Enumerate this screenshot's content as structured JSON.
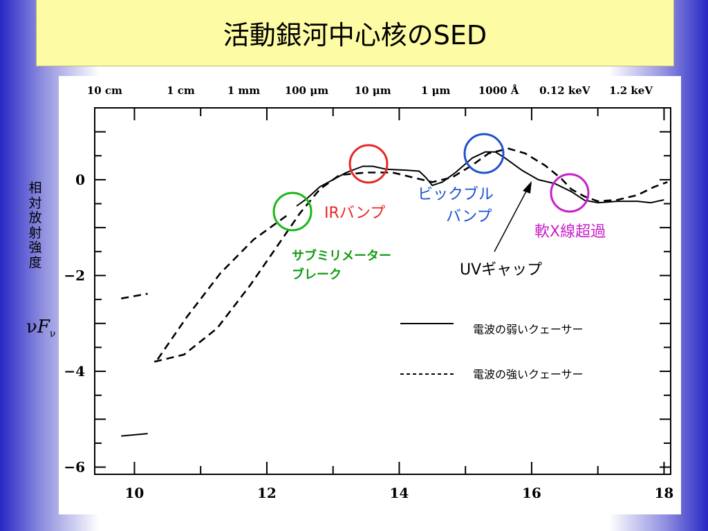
{
  "title": "活動銀河中心核のSED",
  "ylabel_vertical": "相対放射強度",
  "ylabel_symbol": {
    "base": "ν",
    "f": "F",
    "sub": "ν"
  },
  "colors": {
    "title_bg": "#fdfca4",
    "green": "#18b818",
    "red": "#e82626",
    "blue": "#1e50d2",
    "magenta": "#c81ec8",
    "green_text": "#139a13"
  },
  "chart_data": {
    "type": "line",
    "xlim": [
      9.4,
      18.1
    ],
    "ylim": [
      -6.15,
      1.5
    ],
    "x_ticks": [
      10,
      12,
      14,
      16,
      18
    ],
    "x_tick_labels": [
      "10",
      "12",
      "14",
      "16",
      "18"
    ],
    "y_ticks": [
      0,
      -2,
      -4,
      -6
    ],
    "y_tick_labels": [
      "0",
      "−2",
      "−4",
      "−6"
    ],
    "top_axis_labels": [
      {
        "x": 9.55,
        "label": "10 cm"
      },
      {
        "x": 10.7,
        "label": "1 cm"
      },
      {
        "x": 11.65,
        "label": "1 mm"
      },
      {
        "x": 12.6,
        "label": "100 μm"
      },
      {
        "x": 13.6,
        "label": "10 μm"
      },
      {
        "x": 14.55,
        "label": "1 μm"
      },
      {
        "x": 15.5,
        "label": "1000 Å"
      },
      {
        "x": 16.5,
        "label": "0.12 keV"
      },
      {
        "x": 17.5,
        "label": "1.2 keV"
      }
    ],
    "series": [
      {
        "name": "電波の弱いクェーサー",
        "style": "solid",
        "segments": [
          [
            [
              9.8,
              -5.35
            ],
            [
              10.2,
              -5.3
            ]
          ],
          [
            [
              12.45,
              -0.55
            ],
            [
              12.6,
              -0.4
            ],
            [
              12.8,
              -0.15
            ],
            [
              13.0,
              0.0
            ],
            [
              13.2,
              0.15
            ],
            [
              13.45,
              0.28
            ],
            [
              13.6,
              0.28
            ],
            [
              13.8,
              0.22
            ],
            [
              14.1,
              0.2
            ],
            [
              14.3,
              0.18
            ],
            [
              14.4,
              0.05
            ],
            [
              14.5,
              -0.12
            ],
            [
              14.65,
              -0.05
            ],
            [
              14.85,
              0.15
            ],
            [
              15.1,
              0.45
            ],
            [
              15.3,
              0.58
            ],
            [
              15.45,
              0.58
            ],
            [
              15.6,
              0.45
            ],
            [
              15.85,
              0.2
            ],
            [
              16.1,
              0.0
            ],
            [
              16.35,
              -0.08
            ],
            [
              16.6,
              -0.25
            ],
            [
              16.8,
              -0.43
            ],
            [
              17.0,
              -0.48
            ],
            [
              17.3,
              -0.45
            ],
            [
              17.6,
              -0.45
            ],
            [
              17.8,
              -0.48
            ],
            [
              18.0,
              -0.42
            ]
          ]
        ]
      },
      {
        "name": "電波の強いクェーサー",
        "style": "dashed",
        "segments": [
          [
            [
              9.8,
              -2.48
            ],
            [
              10.2,
              -2.38
            ]
          ],
          [
            [
              10.35,
              -3.75
            ],
            [
              10.8,
              -2.85
            ],
            [
              11.3,
              -1.95
            ],
            [
              11.8,
              -1.25
            ],
            [
              12.2,
              -0.85
            ],
            [
              12.35,
              -0.7
            ]
          ],
          [
            [
              10.3,
              -3.8
            ],
            [
              10.75,
              -3.65
            ],
            [
              11.25,
              -3.1
            ],
            [
              11.75,
              -2.2
            ],
            [
              12.2,
              -1.3
            ],
            [
              12.5,
              -0.7
            ],
            [
              12.8,
              -0.2
            ],
            [
              13.1,
              0.1
            ],
            [
              13.5,
              0.15
            ],
            [
              13.9,
              0.15
            ],
            [
              14.2,
              0.05
            ],
            [
              14.5,
              -0.05
            ],
            [
              14.8,
              0.05
            ],
            [
              15.1,
              0.3
            ],
            [
              15.35,
              0.55
            ],
            [
              15.65,
              0.65
            ],
            [
              15.9,
              0.55
            ],
            [
              16.2,
              0.3
            ],
            [
              16.45,
              0.02
            ],
            [
              16.6,
              -0.2
            ],
            [
              16.8,
              -0.35
            ],
            [
              17.0,
              -0.45
            ],
            [
              17.3,
              -0.42
            ],
            [
              17.6,
              -0.32
            ],
            [
              17.85,
              -0.15
            ],
            [
              18.05,
              -0.05
            ]
          ]
        ]
      }
    ]
  },
  "annotations": {
    "submm_break_line1": "サブミリメーター",
    "submm_break_line2": "ブレーク",
    "ir_bump": "IRバンプ",
    "big_bump_line1": "ビックブル",
    "big_bump_line2": "バンプ",
    "soft_xray_excess": "軟X線超過",
    "uv_gap": "UVギャップ"
  },
  "legend": {
    "solid_label": "電波の弱いクェーサー",
    "dashed_label": "電波の強いクェーサー"
  }
}
